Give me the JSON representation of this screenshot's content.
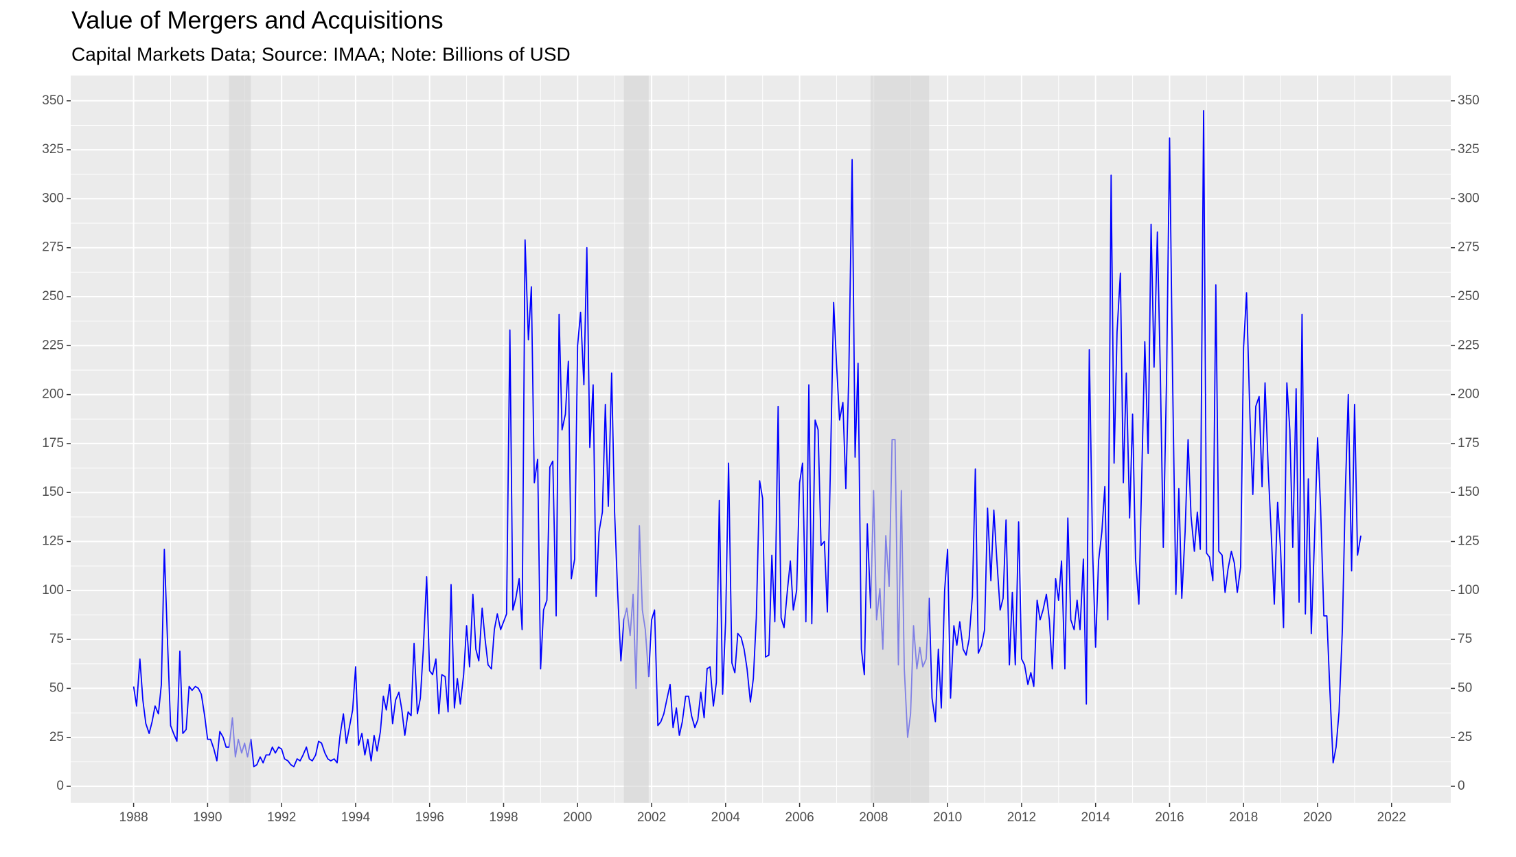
{
  "chart_data": {
    "type": "line",
    "title": "Value of Mergers and Acquisitions",
    "subtitle": "Capital Markets Data; Source: IMAA; Note: Billions of USD",
    "color": "#0000ff",
    "recessions": [
      [
        1990.58,
        1991.17
      ],
      [
        2001.25,
        2001.92
      ],
      [
        2007.92,
        2009.5
      ]
    ],
    "recession_color": "#d3d3d3",
    "xlim": [
      1986.3,
      2023.6
    ],
    "ylim": [
      -8.4,
      362.9
    ],
    "xticks": [
      1988,
      1990,
      1992,
      1994,
      1996,
      1998,
      2000,
      2002,
      2004,
      2006,
      2008,
      2010,
      2012,
      2014,
      2016,
      2018,
      2020,
      2022
    ],
    "yticks": [
      0,
      25,
      50,
      75,
      100,
      125,
      150,
      175,
      200,
      225,
      250,
      275,
      300,
      325,
      350
    ],
    "grid": true,
    "x": [
      1988.0,
      1988.08,
      1988.17,
      1988.25,
      1988.33,
      1988.42,
      1988.5,
      1988.58,
      1988.67,
      1988.75,
      1988.83,
      1988.92,
      1989.0,
      1989.08,
      1989.17,
      1989.25,
      1989.33,
      1989.42,
      1989.5,
      1989.58,
      1989.67,
      1989.75,
      1989.83,
      1989.92,
      1990.0,
      1990.08,
      1990.17,
      1990.25,
      1990.33,
      1990.42,
      1990.5,
      1990.58,
      1990.67,
      1990.75,
      1990.83,
      1990.92,
      1991.0,
      1991.08,
      1991.17,
      1991.25,
      1991.33,
      1991.42,
      1991.5,
      1991.58,
      1991.67,
      1991.75,
      1991.83,
      1991.92,
      1992.0,
      1992.08,
      1992.17,
      1992.25,
      1992.33,
      1992.42,
      1992.5,
      1992.58,
      1992.67,
      1992.75,
      1992.83,
      1992.92,
      1993.0,
      1993.08,
      1993.17,
      1993.25,
      1993.33,
      1993.42,
      1993.5,
      1993.58,
      1993.67,
      1993.75,
      1993.83,
      1993.92,
      1994.0,
      1994.08,
      1994.17,
      1994.25,
      1994.33,
      1994.42,
      1994.5,
      1994.58,
      1994.67,
      1994.75,
      1994.83,
      1994.92,
      1995.0,
      1995.08,
      1995.17,
      1995.25,
      1995.33,
      1995.42,
      1995.5,
      1995.58,
      1995.67,
      1995.75,
      1995.83,
      1995.92,
      1996.0,
      1996.08,
      1996.17,
      1996.25,
      1996.33,
      1996.42,
      1996.5,
      1996.58,
      1996.67,
      1996.75,
      1996.83,
      1996.92,
      1997.0,
      1997.08,
      1997.17,
      1997.25,
      1997.33,
      1997.42,
      1997.5,
      1997.58,
      1997.67,
      1997.75,
      1997.83,
      1997.92,
      1998.0,
      1998.08,
      1998.17,
      1998.25,
      1998.33,
      1998.42,
      1998.5,
      1998.58,
      1998.67,
      1998.75,
      1998.83,
      1998.92,
      1999.0,
      1999.08,
      1999.17,
      1999.25,
      1999.33,
      1999.42,
      1999.5,
      1999.58,
      1999.67,
      1999.75,
      1999.83,
      1999.92,
      2000.0,
      2000.08,
      2000.17,
      2000.25,
      2000.33,
      2000.42,
      2000.5,
      2000.58,
      2000.67,
      2000.75,
      2000.83,
      2000.92,
      2001.0,
      2001.08,
      2001.17,
      2001.25,
      2001.33,
      2001.42,
      2001.5,
      2001.58,
      2001.67,
      2001.75,
      2001.83,
      2001.92,
      2002.0,
      2002.08,
      2002.17,
      2002.25,
      2002.33,
      2002.42,
      2002.5,
      2002.58,
      2002.67,
      2002.75,
      2002.83,
      2002.92,
      2003.0,
      2003.08,
      2003.17,
      2003.25,
      2003.33,
      2003.42,
      2003.5,
      2003.58,
      2003.67,
      2003.75,
      2003.83,
      2003.92,
      2004.0,
      2004.08,
      2004.17,
      2004.25,
      2004.33,
      2004.42,
      2004.5,
      2004.58,
      2004.67,
      2004.75,
      2004.83,
      2004.92,
      2005.0,
      2005.08,
      2005.17,
      2005.25,
      2005.33,
      2005.42,
      2005.5,
      2005.58,
      2005.67,
      2005.75,
      2005.83,
      2005.92,
      2006.0,
      2006.08,
      2006.17,
      2006.25,
      2006.33,
      2006.42,
      2006.5,
      2006.58,
      2006.67,
      2006.75,
      2006.83,
      2006.92,
      2007.0,
      2007.08,
      2007.17,
      2007.25,
      2007.33,
      2007.42,
      2007.5,
      2007.58,
      2007.67,
      2007.75,
      2007.83,
      2007.92,
      2008.0,
      2008.08,
      2008.17,
      2008.25,
      2008.33,
      2008.42,
      2008.5,
      2008.58,
      2008.67,
      2008.75,
      2008.83,
      2008.92,
      2009.0,
      2009.08,
      2009.17,
      2009.25,
      2009.33,
      2009.42,
      2009.5,
      2009.58,
      2009.67,
      2009.75,
      2009.83,
      2009.92,
      2010.0,
      2010.08,
      2010.17,
      2010.25,
      2010.33,
      2010.42,
      2010.5,
      2010.58,
      2010.67,
      2010.75,
      2010.83,
      2010.92,
      2011.0,
      2011.08,
      2011.17,
      2011.25,
      2011.33,
      2011.42,
      2011.5,
      2011.58,
      2011.67,
      2011.75,
      2011.83,
      2011.92,
      2012.0,
      2012.08,
      2012.17,
      2012.25,
      2012.33,
      2012.42,
      2012.5,
      2012.58,
      2012.67,
      2012.75,
      2012.83,
      2012.92,
      2013.0,
      2013.08,
      2013.17,
      2013.25,
      2013.33,
      2013.42,
      2013.5,
      2013.58,
      2013.67,
      2013.75,
      2013.83,
      2013.92,
      2014.0,
      2014.08,
      2014.17,
      2014.25,
      2014.33,
      2014.42,
      2014.5,
      2014.58,
      2014.67,
      2014.75,
      2014.83,
      2014.92,
      2015.0,
      2015.08,
      2015.17,
      2015.25,
      2015.33,
      2015.42,
      2015.5,
      2015.58,
      2015.67,
      2015.75,
      2015.83,
      2015.92,
      2016.0,
      2016.08,
      2016.17,
      2016.25,
      2016.33,
      2016.42,
      2016.5,
      2016.58,
      2016.67,
      2016.75,
      2016.83,
      2016.92,
      2017.0,
      2017.08,
      2017.17,
      2017.25,
      2017.33,
      2017.42,
      2017.5,
      2017.58,
      2017.67,
      2017.75,
      2017.83,
      2017.92,
      2018.0,
      2018.08,
      2018.17,
      2018.25,
      2018.33,
      2018.42,
      2018.5,
      2018.58,
      2018.67,
      2018.75,
      2018.83,
      2018.92,
      2019.0,
      2019.08,
      2019.17,
      2019.25,
      2019.33,
      2019.42,
      2019.5,
      2019.58,
      2019.67,
      2019.75,
      2019.83,
      2019.92,
      2020.0,
      2020.08,
      2020.17,
      2020.25,
      2020.33,
      2020.42,
      2020.5,
      2020.58,
      2020.67,
      2020.75,
      2020.83,
      2020.92,
      2021.0,
      2021.08,
      2021.17
    ],
    "values": [
      51,
      41,
      65,
      44,
      32,
      27,
      33,
      41,
      37,
      52,
      121,
      72,
      31,
      27,
      23,
      69,
      27,
      29,
      51,
      49,
      51,
      50,
      47,
      36,
      24,
      24,
      19,
      13,
      28,
      25,
      20,
      20,
      35,
      15,
      24,
      17,
      22,
      15,
      24,
      10,
      11,
      15,
      12,
      16,
      16,
      20,
      17,
      20,
      19,
      14,
      13,
      11,
      10,
      14,
      13,
      16,
      20,
      14,
      13,
      16,
      23,
      22,
      17,
      14,
      13,
      14,
      12,
      26,
      37,
      22,
      30,
      39,
      61,
      21,
      27,
      16,
      24,
      13,
      26,
      18,
      28,
      46,
      39,
      52,
      32,
      44,
      48,
      39,
      26,
      38,
      36,
      73,
      37,
      45,
      70,
      107,
      59,
      57,
      65,
      37,
      57,
      56,
      38,
      103,
      40,
      55,
      42,
      57,
      82,
      61,
      98,
      70,
      64,
      91,
      75,
      62,
      60,
      80,
      88,
      80,
      84,
      88,
      233,
      90,
      96,
      106,
      80,
      279,
      228,
      255,
      155,
      167,
      60,
      90,
      95,
      163,
      166,
      87,
      241,
      182,
      190,
      217,
      106,
      116,
      225,
      242,
      205,
      275,
      173,
      205,
      97,
      130,
      140,
      195,
      143,
      211,
      140,
      100,
      64,
      85,
      91,
      77,
      98,
      50,
      133,
      90,
      80,
      56,
      85,
      90,
      31,
      33,
      37,
      45,
      52,
      30,
      40,
      26,
      33,
      46,
      46,
      36,
      30,
      34,
      48,
      35,
      60,
      61,
      41,
      53,
      146,
      47,
      84,
      165,
      63,
      58,
      78,
      76,
      70,
      60,
      43,
      55,
      86,
      156,
      147,
      66,
      67,
      118,
      84,
      194,
      86,
      81,
      100,
      115,
      90,
      100,
      155,
      165,
      84,
      205,
      83,
      187,
      182,
      123,
      125,
      89,
      160,
      247,
      215,
      187,
      196,
      152,
      210,
      320,
      168,
      216,
      70,
      57,
      134,
      91,
      151,
      85,
      101,
      70,
      128,
      102,
      177,
      177,
      62,
      151,
      60,
      25,
      37,
      82,
      60,
      71,
      61,
      65,
      96,
      45,
      33,
      70,
      40,
      100,
      121,
      45,
      82,
      72,
      84,
      70,
      67,
      75,
      97,
      162,
      68,
      72,
      80,
      142,
      105,
      141,
      116,
      90,
      96,
      136,
      62,
      99,
      62,
      135,
      65,
      62,
      52,
      58,
      51,
      95,
      85,
      90,
      98,
      85,
      60,
      106,
      95,
      115,
      60,
      137,
      85,
      80,
      95,
      80,
      116,
      42,
      223,
      120,
      71,
      115,
      130,
      153,
      85,
      312,
      165,
      232,
      262,
      155,
      211,
      137,
      190,
      116,
      93,
      160,
      227,
      170,
      287,
      214,
      283,
      211,
      122,
      210,
      331,
      210,
      98,
      152,
      96,
      130,
      177,
      138,
      120,
      140,
      121,
      345,
      119,
      117,
      105,
      256,
      120,
      118,
      99,
      111,
      120,
      114,
      99,
      112,
      224,
      252,
      190,
      149,
      194,
      199,
      153,
      206,
      160,
      128,
      93,
      145,
      121,
      81,
      206,
      182,
      122,
      203,
      94,
      241,
      88,
      157,
      78,
      128,
      178,
      143,
      87,
      87,
      50,
      12,
      20,
      38,
      80,
      150,
      200,
      110,
      195,
      118,
      128
    ]
  }
}
